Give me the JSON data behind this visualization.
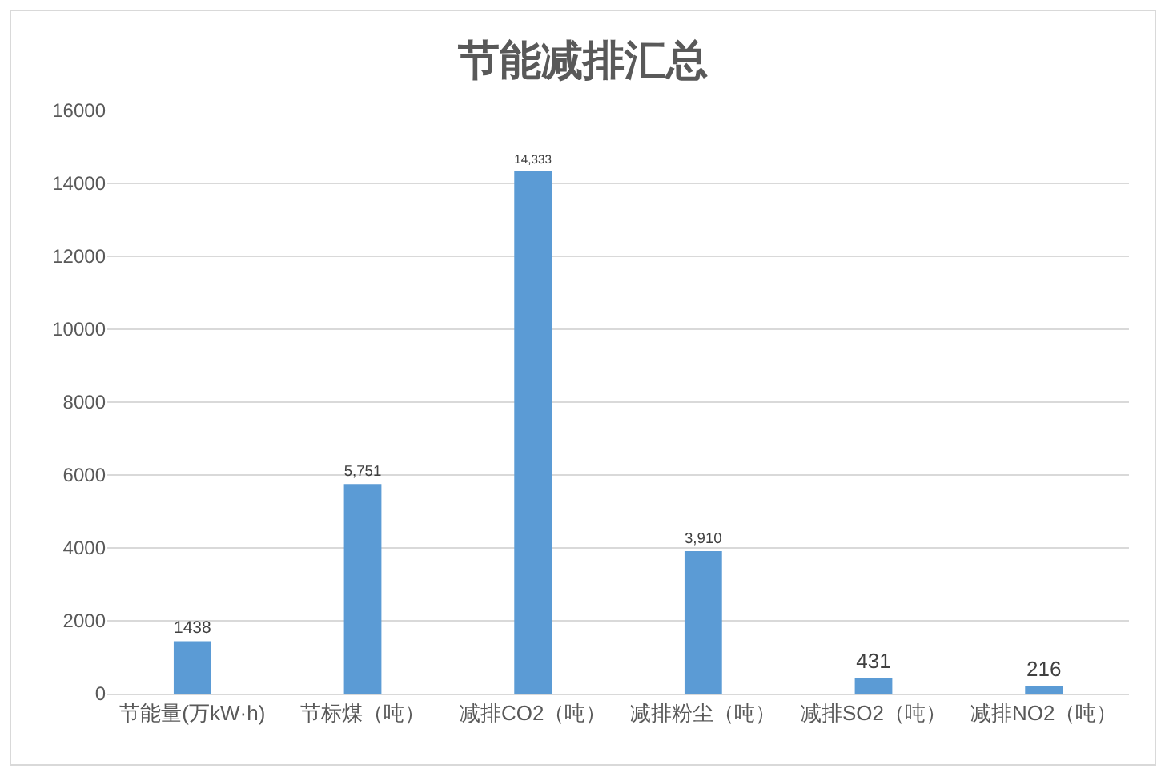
{
  "chart_data": {
    "type": "bar",
    "title": "节能减排汇总",
    "categories": [
      "节能量(万kW·h)",
      "节标煤（吨）",
      "减排CO2（吨）",
      "减排粉尘（吨）",
      "减排SO2（吨）",
      "减排NO2（吨）"
    ],
    "values": [
      1438,
      5751,
      14333,
      3910,
      431,
      216
    ],
    "value_labels": [
      "1438",
      "5,751",
      "14,333",
      "3,910",
      "431",
      "216"
    ],
    "color": "#5b9bd5",
    "ylim": [
      0,
      16000
    ],
    "yticks": [
      0,
      2000,
      4000,
      6000,
      8000,
      10000,
      12000,
      14000,
      16000
    ],
    "grid": "y",
    "legend": false
  }
}
